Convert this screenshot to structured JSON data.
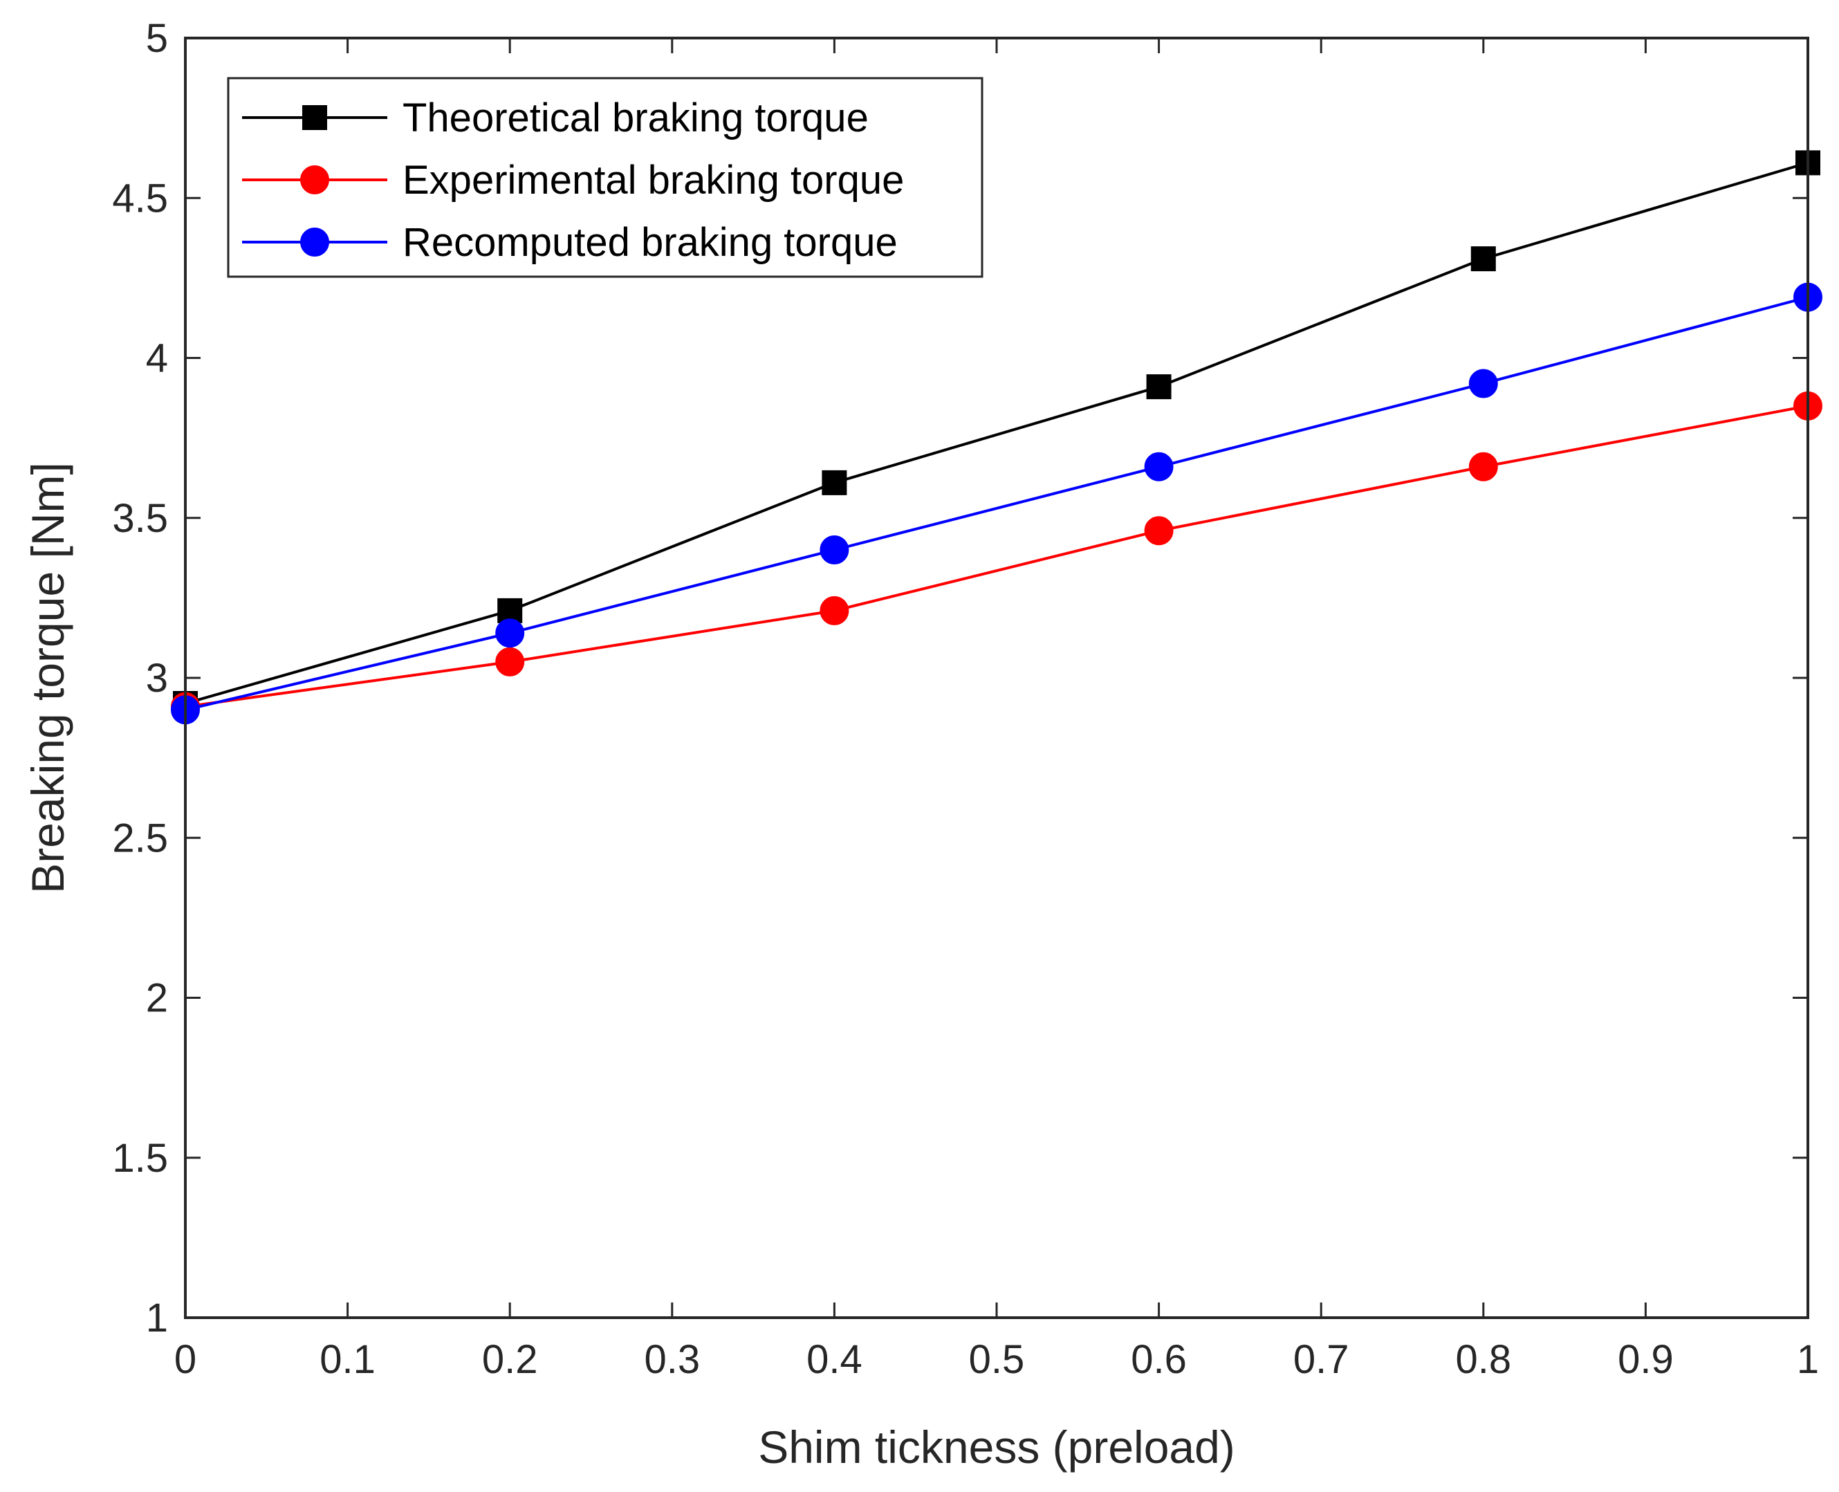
{
  "chart_data": {
    "type": "line",
    "title": "",
    "xlabel": "Shim tickness (preload)",
    "ylabel": "Breaking torque [Nm]",
    "xlim": [
      0,
      1
    ],
    "ylim": [
      1,
      5
    ],
    "xticks": [
      0,
      0.1,
      0.2,
      0.3,
      0.4,
      0.5,
      0.6,
      0.7,
      0.8,
      0.9,
      1
    ],
    "xtick_labels": [
      "0",
      "0.1",
      "0.2",
      "0.3",
      "0.4",
      "0.5",
      "0.6",
      "0.7",
      "0.8",
      "0.9",
      "1"
    ],
    "yticks": [
      1,
      1.5,
      2,
      2.5,
      3,
      3.5,
      4,
      4.5,
      5
    ],
    "ytick_labels": [
      "1",
      "1.5",
      "2",
      "2.5",
      "3",
      "3.5",
      "4",
      "4.5",
      "5"
    ],
    "grid": false,
    "legend_position": "top-left",
    "x": [
      0,
      0.2,
      0.4,
      0.6,
      0.8,
      1
    ],
    "series": [
      {
        "name": "Theoretical braking torque",
        "color": "#000000",
        "marker": "square",
        "values": [
          2.92,
          3.21,
          3.61,
          3.91,
          4.31,
          4.61
        ]
      },
      {
        "name": "Experimental braking torque",
        "color": "#ff0000",
        "marker": "circle",
        "values": [
          2.91,
          3.05,
          3.21,
          3.46,
          3.66,
          3.85
        ]
      },
      {
        "name": "Recomputed braking torque",
        "color": "#0000ff",
        "marker": "circle",
        "values": [
          2.9,
          3.14,
          3.4,
          3.66,
          3.92,
          4.19
        ]
      }
    ]
  }
}
